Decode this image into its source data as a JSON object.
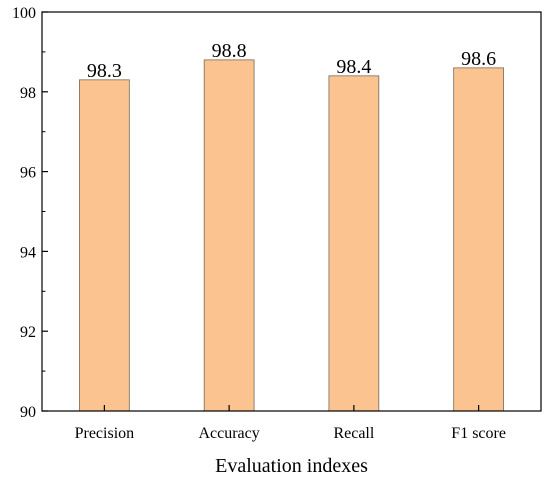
{
  "chart_data": {
    "type": "bar",
    "title": "",
    "xlabel": "Evaluation indexes",
    "ylabel": "",
    "categories": [
      "Precision",
      "Accuracy",
      "Recall",
      "F1 score"
    ],
    "values": [
      98.3,
      98.8,
      98.4,
      98.6
    ],
    "data_labels": [
      "98.3",
      "98.8",
      "98.4",
      "98.6"
    ],
    "ylim": [
      90,
      100
    ],
    "yticks": [
      90,
      92,
      94,
      96,
      98,
      100
    ],
    "ytick_labels": [
      "90",
      "92",
      "94",
      "96",
      "98",
      "100"
    ],
    "bar_color": "#fac38f",
    "bar_edge_color": "#7a6a5a",
    "grid": false,
    "legend": "none"
  }
}
